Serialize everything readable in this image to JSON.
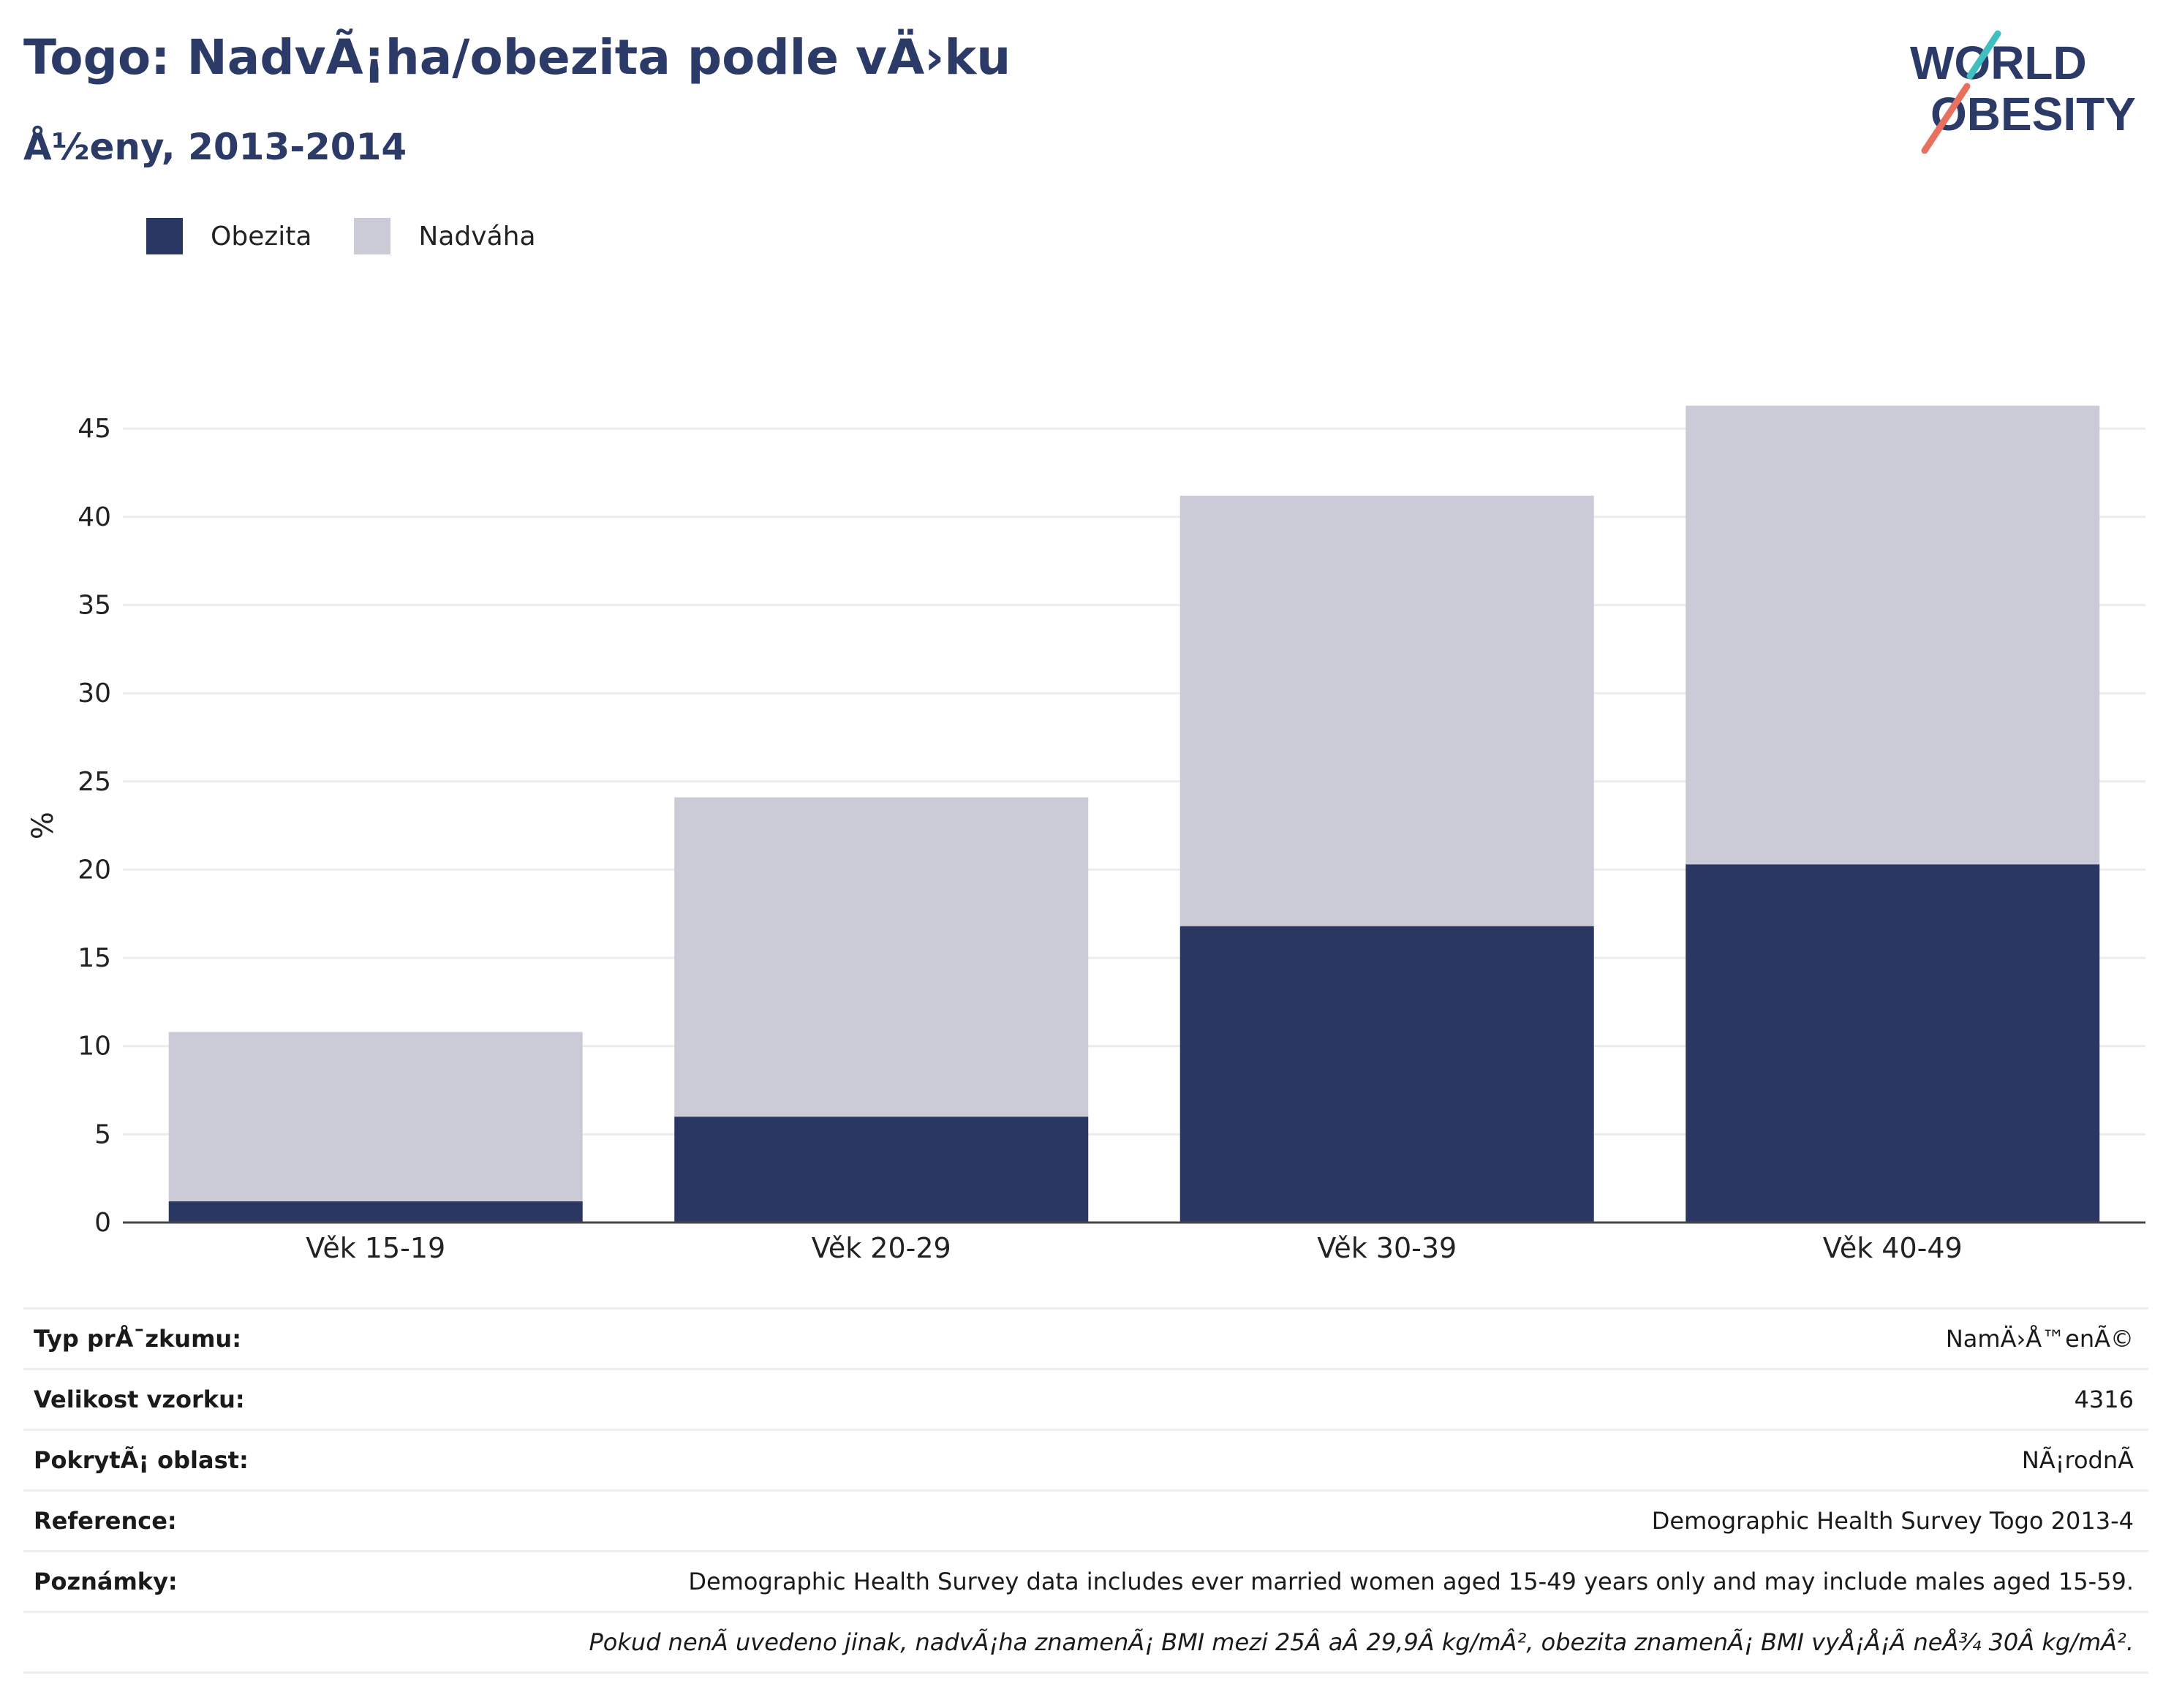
{
  "header": {
    "title": "Togo: NadvÃ¡ha/obezita podle vÄ›ku",
    "subtitle": "Å½eny, 2013-2014"
  },
  "logo": {
    "line1": "WORLD",
    "line2": "OBESITY",
    "icon": "world-obesity-logo"
  },
  "colors": {
    "obesity": "#2b3763",
    "overweight": "#cacbd6",
    "text": "#2b3a67"
  },
  "legend": [
    {
      "label": "Obezita",
      "color": "#2b3763"
    },
    {
      "label": "Nadváha",
      "color": "#cacbd6"
    }
  ],
  "chart_data": {
    "type": "bar",
    "stacked": true,
    "categories": [
      "Věk 15-19",
      "Věk 20-29",
      "Věk 30-39",
      "Věk 40-49"
    ],
    "series": [
      {
        "name": "Obezita",
        "values": [
          1.2,
          6.0,
          16.8,
          20.3
        ]
      },
      {
        "name": "Nadváha",
        "values": [
          9.6,
          18.1,
          24.4,
          26.0
        ]
      }
    ],
    "ylabel": "%",
    "ylim": [
      0,
      46.5
    ],
    "yticks": [
      0,
      5,
      10,
      15,
      20,
      25,
      30,
      35,
      40,
      45
    ],
    "grid": true,
    "legend_position": "top-left"
  },
  "info_rows": [
    {
      "label": "Typ prÅ¯zkumu:",
      "value": "NamÄ›Å™enÃ©"
    },
    {
      "label": "Velikost vzorku:",
      "value": "4316"
    },
    {
      "label": "PokrytÃ¡ oblast:",
      "value": "NÃ¡rodnÃ­"
    },
    {
      "label": "Reference:",
      "value": "Demographic Health Survey Togo 2013-4"
    },
    {
      "label": "Poznámky:",
      "value": "Demographic Health Survey data includes ever married women aged 15-49 years only and may include males aged 15-59."
    }
  ],
  "footnote": "Pokud nenÃ­ uvedeno jinak, nadvÃ¡ha znamenÃ¡ BMI mezi 25Â aÂ 29,9Â kg/mÂ², obezita znamenÃ¡ BMI vyÅ¡Å¡Ã­ neÅ¾ 30Â kg/mÂ²."
}
